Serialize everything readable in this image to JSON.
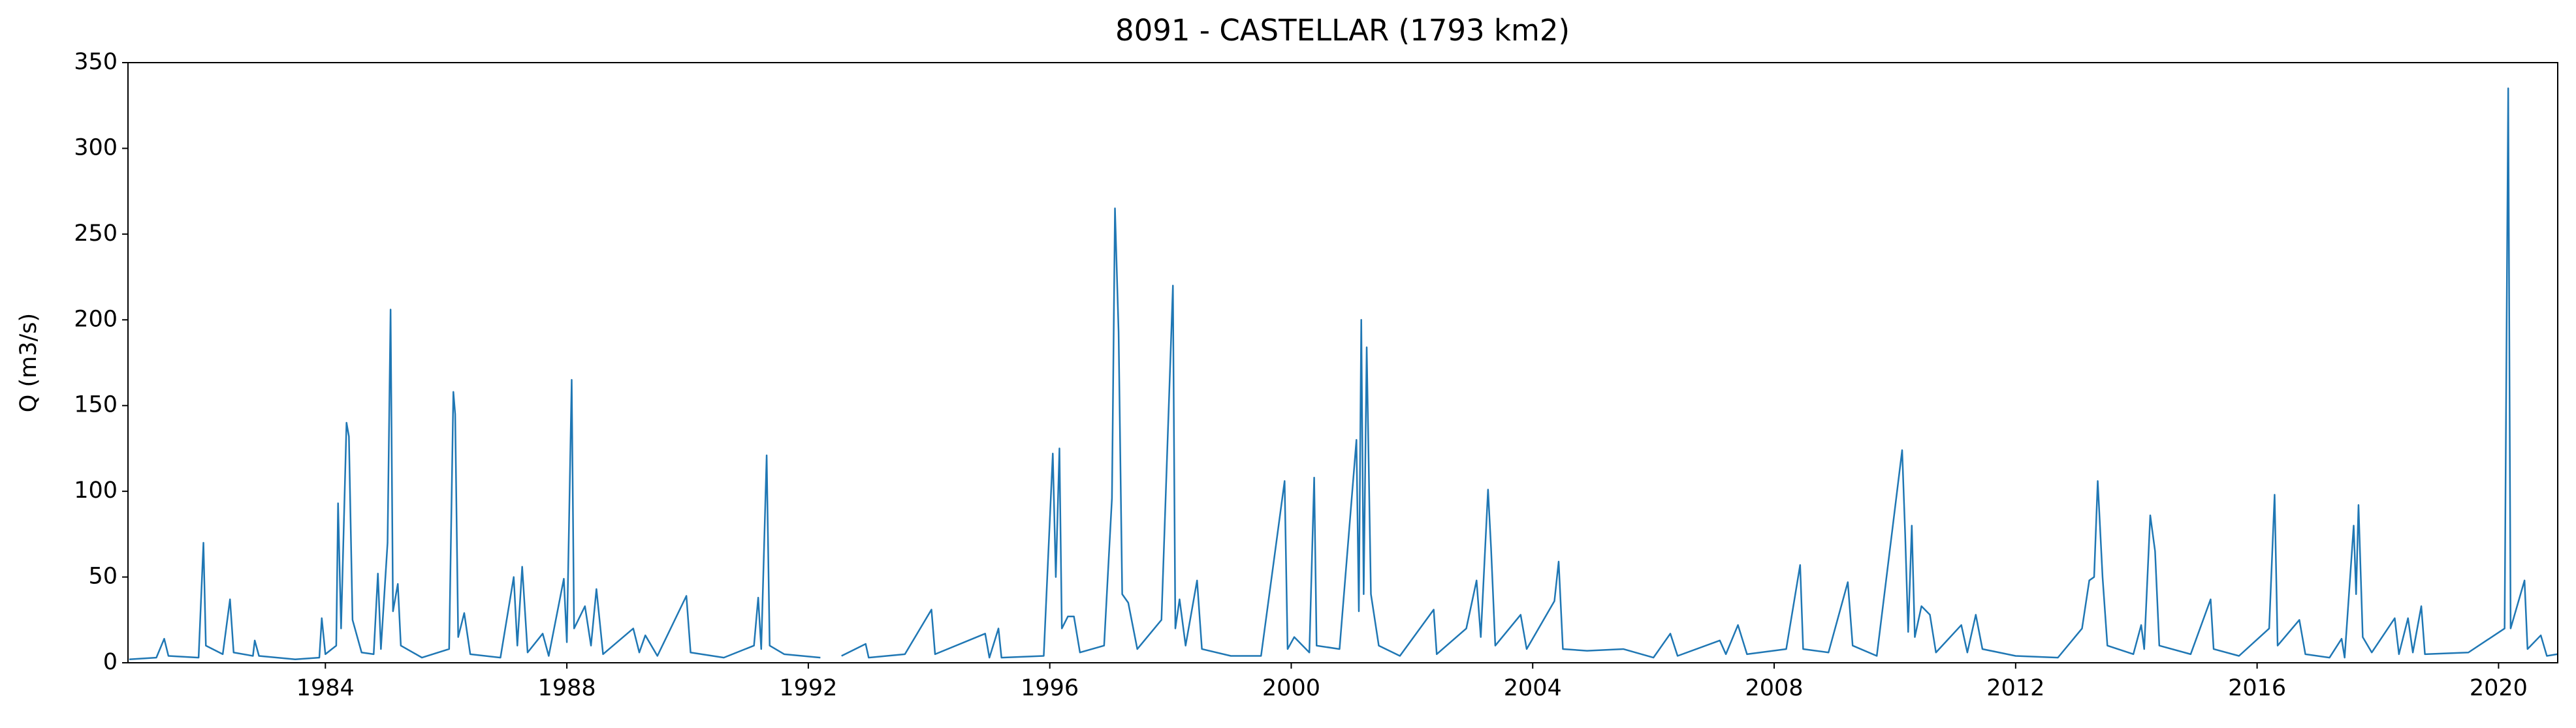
{
  "chart_data": {
    "type": "line",
    "title": "8091 - CASTELLAR (1793 km2)",
    "y_label": "Q (m3/s)",
    "xlim": [
      1980.73,
      2020.98
    ],
    "xticks": [
      1984,
      1988,
      1992,
      1996,
      2000,
      2004,
      2008,
      2012,
      2016,
      2020
    ],
    "ylim": [
      0,
      350
    ],
    "yticks": [
      0,
      50,
      100,
      150,
      200,
      250,
      300,
      350
    ],
    "grid": false,
    "series": [
      {
        "color": "#1f77b4",
        "x": [
          1980.75,
          1981.2,
          1981.33,
          1981.4,
          1981.9,
          1981.98,
          1982.02,
          1982.3,
          1982.42,
          1982.48,
          1982.8,
          1982.83,
          1982.9,
          1983.5,
          1983.9,
          1983.94,
          1984.0,
          1984.18,
          1984.21,
          1984.26,
          1984.35,
          1984.39,
          1984.45,
          1984.6,
          1984.8,
          1984.87,
          1984.92,
          1985.03,
          1985.08,
          1985.12,
          1985.2,
          1985.25,
          1985.6,
          1986.05,
          1986.12,
          1986.15,
          1986.2,
          1986.3,
          1986.4,
          1986.9,
          1987.12,
          1987.18,
          1987.26,
          1987.35,
          1987.6,
          1987.7,
          1987.95,
          1988.0,
          1988.08,
          1988.12,
          1988.3,
          1988.4,
          1988.49,
          1988.6,
          1989.1,
          1989.2,
          1989.3,
          1989.5,
          1989.98,
          1990.05,
          1990.6,
          1991.1,
          1991.17,
          1991.22,
          1991.31,
          1991.36,
          1991.6,
          1992.2,
          1992.35,
          1992.55,
          1992.95,
          1993.0,
          1993.6,
          1994.04,
          1994.1,
          1994.93,
          1995.0,
          1995.15,
          1995.2,
          1995.9,
          1996.05,
          1996.1,
          1996.16,
          1996.2,
          1996.3,
          1996.4,
          1996.5,
          1996.9,
          1997.03,
          1997.08,
          1997.14,
          1997.2,
          1997.3,
          1997.45,
          1997.85,
          1998.04,
          1998.08,
          1998.15,
          1998.25,
          1998.44,
          1998.52,
          1999.0,
          1999.5,
          1999.89,
          1999.94,
          2000.05,
          2000.3,
          2000.38,
          2000.42,
          2000.8,
          2001.08,
          2001.12,
          2001.16,
          2001.2,
          2001.25,
          2001.32,
          2001.45,
          2001.8,
          2002.36,
          2002.41,
          2002.9,
          2003.07,
          2003.14,
          2003.26,
          2003.31,
          2003.38,
          2003.8,
          2003.9,
          2004.36,
          2004.43,
          2004.5,
          2004.9,
          2005.5,
          2006.0,
          2006.28,
          2006.4,
          2007.1,
          2007.2,
          2007.4,
          2007.55,
          2008.2,
          2008.43,
          2008.48,
          2008.9,
          2009.22,
          2009.3,
          2009.7,
          2010.12,
          2010.17,
          2010.22,
          2010.28,
          2010.33,
          2010.44,
          2010.58,
          2010.68,
          2011.1,
          2011.2,
          2011.34,
          2011.45,
          2012.0,
          2012.7,
          2013.1,
          2013.22,
          2013.3,
          2013.36,
          2013.44,
          2013.52,
          2013.95,
          2014.08,
          2014.13,
          2014.23,
          2014.31,
          2014.38,
          2014.9,
          2015.23,
          2015.28,
          2015.7,
          2016.2,
          2016.29,
          2016.34,
          2016.7,
          2016.8,
          2017.2,
          2017.4,
          2017.45,
          2017.6,
          2017.64,
          2017.68,
          2017.75,
          2017.9,
          2018.28,
          2018.35,
          2018.5,
          2018.58,
          2018.72,
          2018.78,
          2019.5,
          2020.1,
          2020.16,
          2020.2,
          2020.43,
          2020.48,
          2020.7,
          2020.8,
          2020.97
        ],
        "values": [
          2,
          3,
          14,
          4,
          3,
          70,
          10,
          5,
          37,
          6,
          4,
          13,
          4,
          2,
          3,
          26,
          5,
          10,
          93,
          20,
          140,
          132,
          25,
          6,
          5,
          52,
          8,
          70,
          206,
          30,
          46,
          10,
          3,
          8,
          158,
          145,
          15,
          29,
          5,
          3,
          50,
          10,
          56,
          6,
          17,
          4,
          49,
          12,
          165,
          20,
          33,
          10,
          43,
          5,
          20,
          6,
          16,
          4,
          39,
          6,
          3,
          10,
          38,
          8,
          121,
          10,
          5,
          3,
          null,
          4,
          11,
          3,
          5,
          31,
          5,
          17,
          3,
          20,
          3,
          4,
          122,
          50,
          125,
          20,
          27,
          27,
          6,
          10,
          96,
          265,
          193,
          40,
          35,
          8,
          25,
          220,
          20,
          37,
          10,
          48,
          8,
          4,
          4,
          106,
          8,
          15,
          6,
          108,
          10,
          8,
          130,
          30,
          200,
          40,
          184,
          40,
          10,
          4,
          31,
          5,
          20,
          48,
          15,
          101,
          67,
          10,
          28,
          8,
          36,
          59,
          8,
          7,
          8,
          3,
          17,
          4,
          13,
          5,
          22,
          5,
          8,
          57,
          8,
          6,
          47,
          10,
          4,
          124,
          75,
          18,
          80,
          15,
          33,
          28,
          6,
          22,
          6,
          28,
          8,
          4,
          3,
          20,
          48,
          50,
          106,
          50,
          10,
          5,
          22,
          8,
          86,
          65,
          10,
          5,
          37,
          8,
          4,
          20,
          98,
          10,
          25,
          5,
          3,
          14,
          3,
          80,
          40,
          92,
          15,
          6,
          26,
          5,
          26,
          6,
          33,
          5,
          6,
          20,
          335,
          20,
          48,
          8,
          16,
          4,
          5
        ]
      }
    ]
  }
}
